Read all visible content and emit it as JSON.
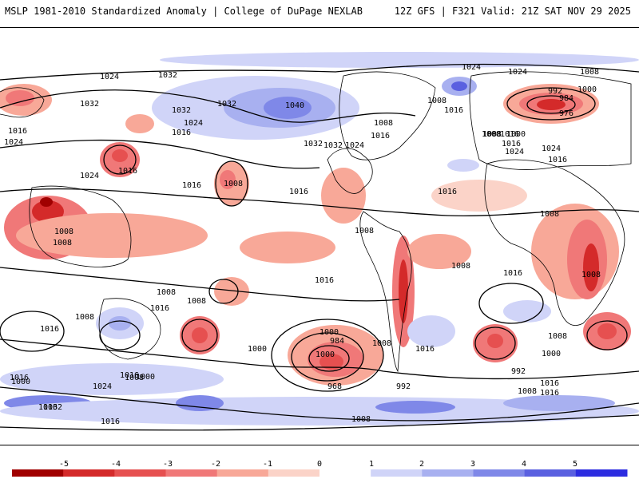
{
  "header": {
    "title_left": "MSLP 1981-2010 Standardized Anomaly | College of DuPage NEXLAB",
    "title_right": "12Z GFS | F321 Valid: 21Z SAT NOV 29 2025"
  },
  "map": {
    "contour_labels": [
      "1024",
      "1032",
      "1032",
      "1016",
      "1024",
      "1024",
      "1032",
      "1016",
      "1024",
      "1016",
      "1008",
      "1032",
      "1032",
      "1040",
      "1032",
      "1024",
      "1016",
      "1008",
      "1016",
      "1016",
      "1016",
      "1024",
      "1024",
      "1016",
      "1008",
      "1008",
      "1008",
      "1008",
      "1008",
      "1016",
      "1016",
      "1008",
      "1000",
      "992",
      "984",
      "976",
      "1008",
      "1000",
      "1016",
      "1024",
      "1024",
      "1016",
      "1008",
      "1008",
      "1008",
      "1016",
      "1008",
      "1008",
      "1016",
      "1008",
      "1016",
      "1016",
      "1016",
      "1000",
      "1000",
      "984",
      "1000",
      "1008",
      "968",
      "992",
      "1016",
      "1016",
      "1008",
      "1016",
      "1000",
      "1024",
      "1032",
      "1016",
      "1000",
      "1008",
      "1000",
      "992",
      "1008",
      "1016",
      "1008"
    ]
  },
  "colorbar": {
    "ticks": [
      "-5",
      "-4",
      "-3",
      "-2",
      "-1",
      "0",
      "1",
      "2",
      "3",
      "4",
      "5"
    ],
    "colors": [
      "#a00000",
      "#d42a2a",
      "#e65050",
      "#f07878",
      "#f8a898",
      "#fbd3c8",
      "#ffffff",
      "#d0d4f8",
      "#a8b0f0",
      "#7f88e8",
      "#5a60e0",
      "#2c2ce0"
    ]
  }
}
